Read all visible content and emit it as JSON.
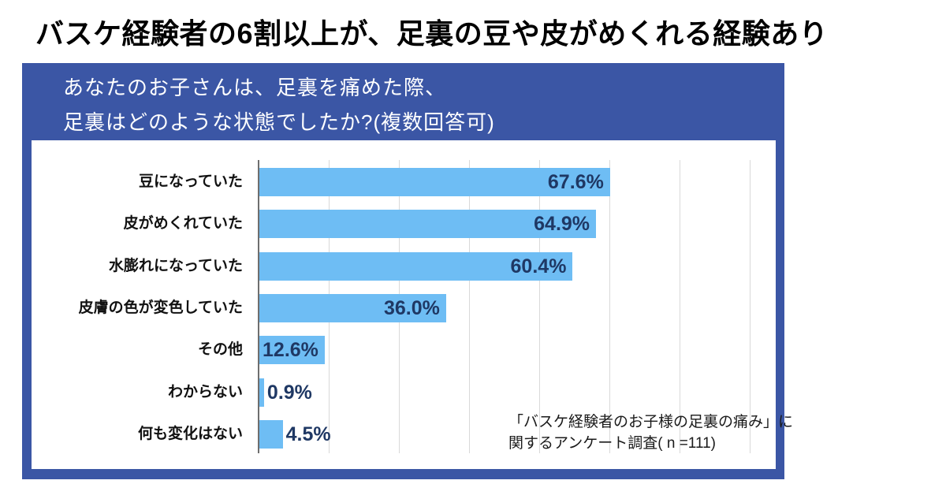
{
  "title": "バスケ経験者の6割以上が、足裏の豆や皮がめくれる経験あり",
  "question": {
    "line1": "あなたのお子さんは、足裏を痛めた際、",
    "line2": "足裏はどのような状態でしたか?(複数回答可)"
  },
  "note": {
    "line1": "「バスケ経験者のお子様の足裏の痛み」に",
    "line2": "関するアンケート調査( n =111)"
  },
  "colors": {
    "frame_blue": "#3B56A5",
    "bar_blue": "#6EBDF4",
    "value_navy": "#1F3864",
    "gridline_gray": "#d9d9d9",
    "axis_gray": "#6e6e6e"
  },
  "chart_data": {
    "type": "bar",
    "orientation": "horizontal",
    "title": "あなたのお子さんは、足裏を痛めた際、足裏はどのような状態でしたか?(複数回答可)",
    "categories": [
      "豆になっていた",
      "皮がめくれていた",
      "水膨れになっていた",
      "皮膚の色が変色していた",
      "その他",
      "わからない",
      "何も変化はない"
    ],
    "values": [
      67.6,
      64.9,
      60.4,
      36.0,
      12.6,
      0.9,
      4.5
    ],
    "value_labels": [
      "67.6%",
      "64.9%",
      "60.4%",
      "36.0%",
      "12.6%",
      "0.9%",
      "4.5%"
    ],
    "xlabel": "",
    "ylabel": "",
    "xlim": [
      0,
      100
    ],
    "grid": true,
    "legend": "none",
    "bar_color": "#6EBDF4",
    "value_color": "#1F3864"
  }
}
